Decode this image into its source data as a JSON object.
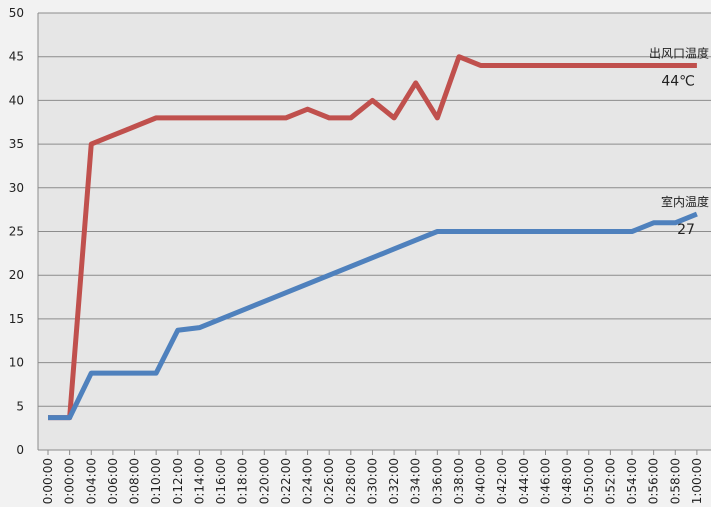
{
  "chart_data": {
    "type": "line",
    "categories": [
      "0:00:00",
      "0:00:00",
      "0:04:00",
      "0:06:00",
      "0:08:00",
      "0:10:00",
      "0:12:00",
      "0:14:00",
      "0:16:00",
      "0:18:00",
      "0:20:00",
      "0:22:00",
      "0:24:00",
      "0:26:00",
      "0:28:00",
      "0:30:00",
      "0:32:00",
      "0:34:00",
      "0:36:00",
      "0:38:00",
      "0:40:00",
      "0:42:00",
      "0:44:00",
      "0:46:00",
      "0:48:00",
      "0:50:00",
      "0:52:00",
      "0:54:00",
      "0:56:00",
      "0:58:00",
      "1:00:00"
    ],
    "series": [
      {
        "name": "出风口温度",
        "color": "#c0504d",
        "values": [
          3.7,
          3.7,
          35,
          36,
          37,
          38,
          38,
          38,
          38,
          38,
          38,
          38,
          39,
          38,
          38,
          40,
          38,
          42,
          38,
          45,
          44,
          44,
          44,
          44,
          44,
          44,
          44,
          44,
          44,
          44,
          44
        ],
        "value_labels": [
          null,
          null,
          null,
          null,
          null,
          null,
          null,
          null,
          null,
          null,
          null,
          null,
          null,
          null,
          null,
          null,
          null,
          null,
          null,
          null,
          null,
          null,
          null,
          null,
          null,
          null,
          null,
          null,
          null,
          null,
          "44℃"
        ]
      },
      {
        "name": "室内温度",
        "color": "#4f81bd",
        "values": [
          3.7,
          3.7,
          8.8,
          8.8,
          8.8,
          8.8,
          13.7,
          14,
          15,
          16,
          17,
          18,
          19,
          20,
          21,
          22,
          23,
          24,
          25,
          25,
          25,
          25,
          25,
          25,
          25,
          25,
          25,
          25,
          26,
          26,
          27
        ],
        "value_labels": [
          null,
          null,
          null,
          null,
          null,
          null,
          null,
          null,
          null,
          null,
          null,
          null,
          null,
          null,
          null,
          null,
          null,
          null,
          null,
          null,
          null,
          null,
          null,
          null,
          null,
          null,
          null,
          null,
          null,
          null,
          "27"
        ]
      }
    ],
    "ylim": [
      0,
      50
    ],
    "yticks": [
      0,
      5,
      10,
      15,
      20,
      25,
      30,
      35,
      40,
      45,
      50
    ],
    "grid": true
  }
}
